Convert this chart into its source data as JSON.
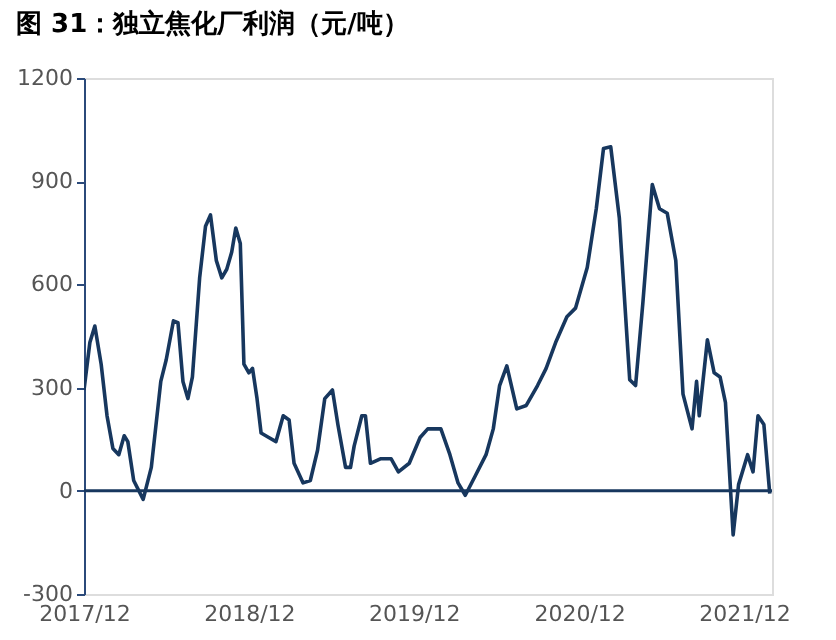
{
  "chart_data": {
    "type": "line",
    "title": "图 31：独立焦化厂利润（元/吨）",
    "x": [
      "2017-12-01",
      "2017-12-14",
      "2017-12-25",
      "2018-01-08",
      "2018-01-21",
      "2018-02-03",
      "2018-02-16",
      "2018-02-28",
      "2018-03-08",
      "2018-03-21",
      "2018-04-11",
      "2018-04-29",
      "2018-05-20",
      "2018-06-01",
      "2018-06-17",
      "2018-06-27",
      "2018-07-08",
      "2018-07-19",
      "2018-07-29",
      "2018-08-14",
      "2018-08-27",
      "2018-09-07",
      "2018-09-20",
      "2018-10-02",
      "2018-10-13",
      "2018-10-24",
      "2018-11-02",
      "2018-11-12",
      "2018-11-20",
      "2018-12-01",
      "2018-12-09",
      "2018-12-19",
      "2018-12-28",
      "2019-01-14",
      "2019-01-30",
      "2019-02-15",
      "2019-02-28",
      "2019-03-11",
      "2019-03-31",
      "2019-04-16",
      "2019-05-02",
      "2019-05-18",
      "2019-06-04",
      "2019-06-16",
      "2019-07-03",
      "2019-07-14",
      "2019-07-22",
      "2019-08-08",
      "2019-08-16",
      "2019-08-27",
      "2019-09-18",
      "2019-10-12",
      "2019-10-28",
      "2019-11-21",
      "2019-12-15",
      "2020-01-01",
      "2020-01-30",
      "2020-02-19",
      "2020-03-08",
      "2020-03-24",
      "2020-04-15",
      "2020-05-09",
      "2020-05-25",
      "2020-06-08",
      "2020-06-24",
      "2020-07-16",
      "2020-08-06",
      "2020-08-31",
      "2020-09-19",
      "2020-10-10",
      "2020-11-04",
      "2020-11-23",
      "2020-12-19",
      "2021-01-08",
      "2021-01-24",
      "2021-02-09",
      "2021-02-28",
      "2021-03-23",
      "2021-04-05",
      "2021-04-21",
      "2021-05-12",
      "2021-05-28",
      "2021-06-14",
      "2021-07-03",
      "2021-07-19",
      "2021-08-08",
      "2021-08-18",
      "2021-08-24",
      "2021-09-11",
      "2021-09-26",
      "2021-10-09",
      "2021-10-21",
      "2021-11-07",
      "2021-11-19",
      "2021-12-09",
      "2021-12-21",
      "2022-01-01",
      "2022-01-14",
      "2022-01-27"
    ],
    "series": [
      {
        "color": "#17375e",
        "values": [
          293,
          431,
          479,
          368,
          218,
          123,
          105,
          160,
          143,
          30,
          -25,
          68,
          318,
          381,
          494,
          489,
          318,
          268,
          331,
          619,
          769,
          802,
          669,
          619,
          644,
          694,
          764,
          719,
          368,
          343,
          356,
          268,
          168,
          155,
          143,
          218,
          206,
          80,
          23,
          30,
          118,
          268,
          293,
          193,
          68,
          68,
          130,
          218,
          218,
          80,
          93,
          93,
          55,
          80,
          155,
          180,
          180,
          105,
          23,
          -13,
          43,
          105,
          180,
          306,
          363,
          238,
          248,
          306,
          356,
          431,
          506,
          531,
          649,
          820,
          995,
          1000,
          794,
          323,
          306,
          544,
          890,
          820,
          807,
          669,
          281,
          180,
          318,
          218,
          439,
          343,
          331,
          256,
          -128,
          18,
          105,
          55,
          218,
          193,
          -8
        ]
      }
    ],
    "xlim": [
      "2017-12-01",
      "2022-02-01"
    ],
    "xticks": [
      {
        "value": "2017-12-01",
        "label": "2017/12"
      },
      {
        "value": "2018-12-01",
        "label": "2018/12"
      },
      {
        "value": "2019-12-01",
        "label": "2019/12"
      },
      {
        "value": "2020-12-01",
        "label": "2020/12"
      },
      {
        "value": "2021-12-01",
        "label": "2021/12"
      }
    ],
    "ylim": [
      -300,
      1200
    ],
    "yticks": [
      -300,
      0,
      300,
      600,
      900,
      1200
    ],
    "ref_lines": [
      {
        "axis": "y",
        "value": 0,
        "color": "#17375e"
      }
    ],
    "grid": false,
    "legend": false
  }
}
